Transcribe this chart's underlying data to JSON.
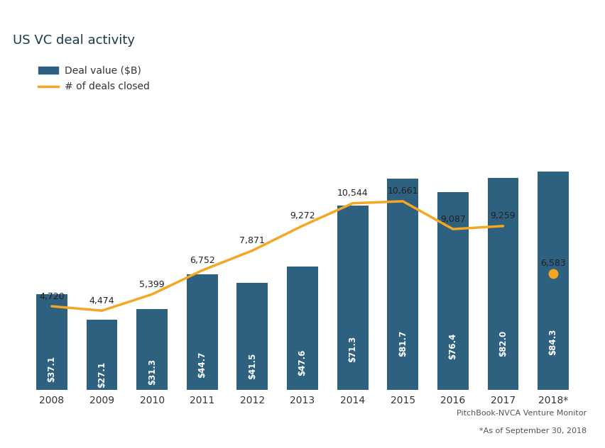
{
  "title": "US VC deal activity",
  "years": [
    "2008",
    "2009",
    "2010",
    "2011",
    "2012",
    "2013",
    "2014",
    "2015",
    "2016",
    "2017",
    "2018*"
  ],
  "deal_values": [
    37.1,
    27.1,
    31.3,
    44.7,
    41.5,
    47.6,
    71.3,
    81.7,
    76.4,
    82.0,
    84.3
  ],
  "deals_closed": [
    4720,
    4474,
    5399,
    6752,
    7871,
    9272,
    10544,
    10661,
    9087,
    9259,
    6583
  ],
  "bar_color": "#2E6080",
  "line_color": "#F5A623",
  "bar_label_color": "#FFFFFF",
  "source_text": "PitchBook-NVCA Venture Monitor",
  "source_text2": "*As of September 30, 2018",
  "legend_bar_label": "Deal value ($B)",
  "legend_line_label": "# of deals closed",
  "bar_value_labels": [
    "$37.1",
    "$27.1",
    "$31.3",
    "$44.7",
    "$41.5",
    "$47.6",
    "$71.3",
    "$81.7",
    "$76.4",
    "$82.0",
    "$84.3"
  ],
  "deals_closed_labels": [
    "4,720",
    "4,474",
    "5,399",
    "6,752",
    "7,871",
    "9,272",
    "10,544",
    "10,661",
    "9,087",
    "9,259",
    "6,583"
  ],
  "ylim_bar": [
    0,
    130
  ],
  "ylim_line": [
    0,
    19000
  ],
  "background_color": "#FFFFFF"
}
